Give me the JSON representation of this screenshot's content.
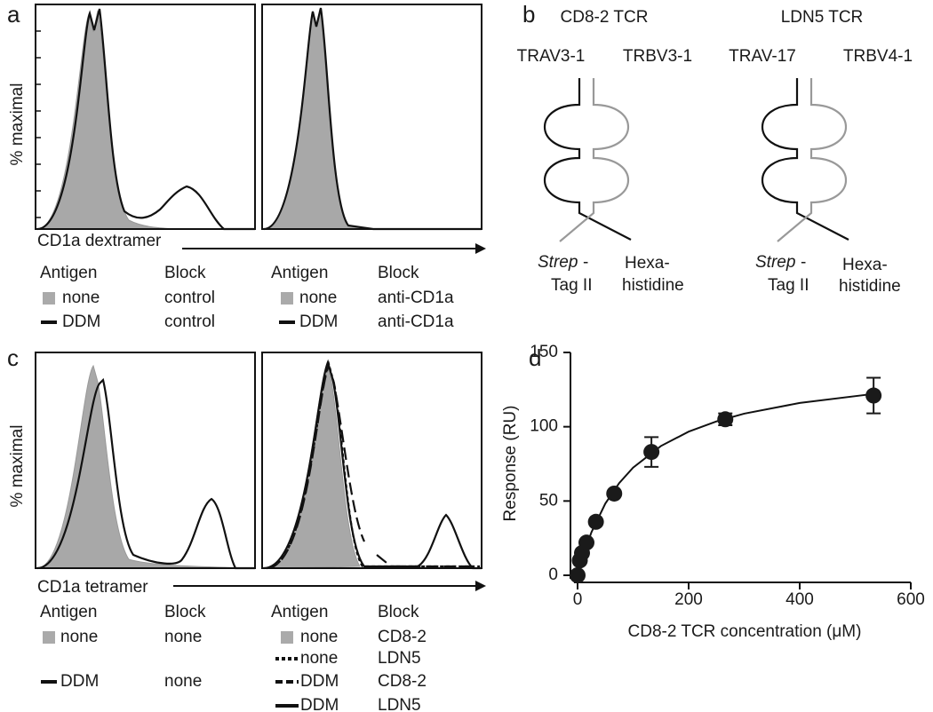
{
  "panels": {
    "a": {
      "letter": "a",
      "x_label": "CD1a dextramer",
      "y_label": "% maximal",
      "legends": [
        {
          "headers": [
            "Antigen",
            "Block"
          ],
          "rows": [
            [
              "none",
              "control"
            ],
            [
              "DDM",
              "control"
            ]
          ]
        },
        {
          "headers": [
            "Antigen",
            "Block"
          ],
          "rows": [
            [
              "none",
              "anti-CD1a"
            ],
            [
              "DDM",
              "anti-CD1a"
            ]
          ]
        }
      ]
    },
    "b": {
      "letter": "b",
      "tcrs": [
        {
          "name": "CD8-2 TCR",
          "alpha": "TRAV3-1",
          "beta": "TRBV3-1",
          "tag1a": "Strep",
          "tag1b": "-",
          "tag1c": "Tag II",
          "tag2a": "Hexa-",
          "tag2b": "histidine"
        },
        {
          "name": "LDN5 TCR",
          "alpha": "TRAV-17",
          "beta": "TRBV4-1",
          "tag1a": "Strep",
          "tag1b": "-",
          "tag1c": "Tag II",
          "tag2a": "Hexa-",
          "tag2b": "histidine"
        }
      ]
    },
    "c": {
      "letter": "c",
      "x_label": "CD1a tetramer",
      "y_label": "% maximal",
      "legends": [
        {
          "headers": [
            "Antigen",
            "Block"
          ],
          "rows": [
            [
              "none",
              "none"
            ],
            [
              "DDM",
              "none"
            ]
          ]
        },
        {
          "headers": [
            "Antigen",
            "Block"
          ],
          "rows": [
            [
              "none",
              "CD8-2"
            ],
            [
              "none",
              "LDN5"
            ],
            [
              "DDM",
              "CD8-2"
            ],
            [
              "DDM",
              "LDN5"
            ]
          ]
        }
      ]
    },
    "d": {
      "letter": "d"
    }
  },
  "chart_data": {
    "type": "scatter",
    "x_label": "CD8-2 TCR concentration (μM)",
    "y_label": "Response (RU)",
    "x": [
      0,
      4,
      8,
      16,
      33,
      66,
      133,
      266,
      533
    ],
    "values": [
      0,
      10,
      15,
      22,
      36,
      55,
      83,
      105,
      121
    ],
    "errors": [
      0,
      0,
      0,
      0,
      0,
      0,
      10,
      4,
      12
    ],
    "color": "#1a1a1a",
    "fit": {
      "x": [
        0,
        10,
        25,
        50,
        75,
        100,
        150,
        200,
        250,
        300,
        400,
        533
      ],
      "values": [
        0,
        13.2,
        29,
        48.3,
        62.1,
        72.5,
        87,
        96.7,
        103.6,
        108.8,
        116,
        122.1
      ]
    },
    "xlim": [
      0,
      600
    ],
    "ylim": [
      0,
      150
    ],
    "xticks": [
      0,
      200,
      400,
      600
    ],
    "yticks": [
      0,
      50,
      100,
      150
    ]
  }
}
